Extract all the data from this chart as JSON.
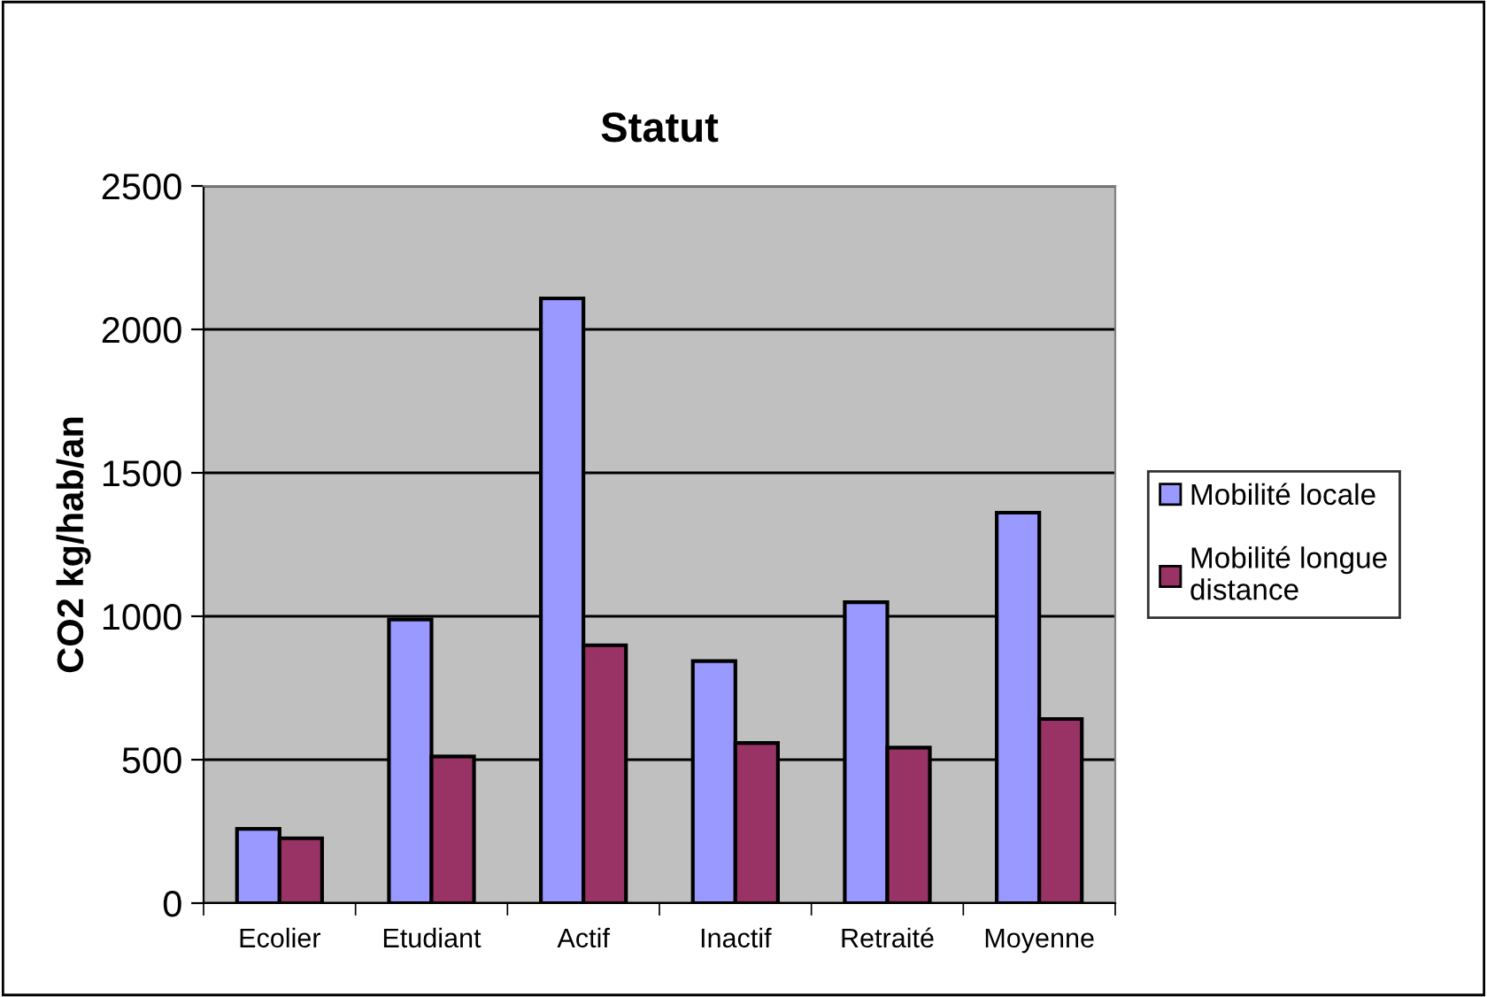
{
  "chart_data": {
    "type": "bar",
    "title": "Statut",
    "ylabel": "CO2 kg/hab/an",
    "categories": [
      "Ecolier",
      "Etudiant",
      "Actif",
      "Inactif",
      "Retraité",
      "Moyenne"
    ],
    "series": [
      {
        "name": "Mobilité locale",
        "color": "#9999ff",
        "values": [
          259,
          989,
          2108,
          844,
          1049,
          1361
        ]
      },
      {
        "name": "Mobilité longue distance",
        "color": "#993366",
        "values": [
          226,
          511,
          899,
          558,
          542,
          642
        ]
      }
    ],
    "ylim": [
      0,
      2500
    ],
    "yticks": [
      0,
      500,
      1000,
      1500,
      2000,
      2500
    ],
    "grid": "y",
    "legend": "right"
  }
}
